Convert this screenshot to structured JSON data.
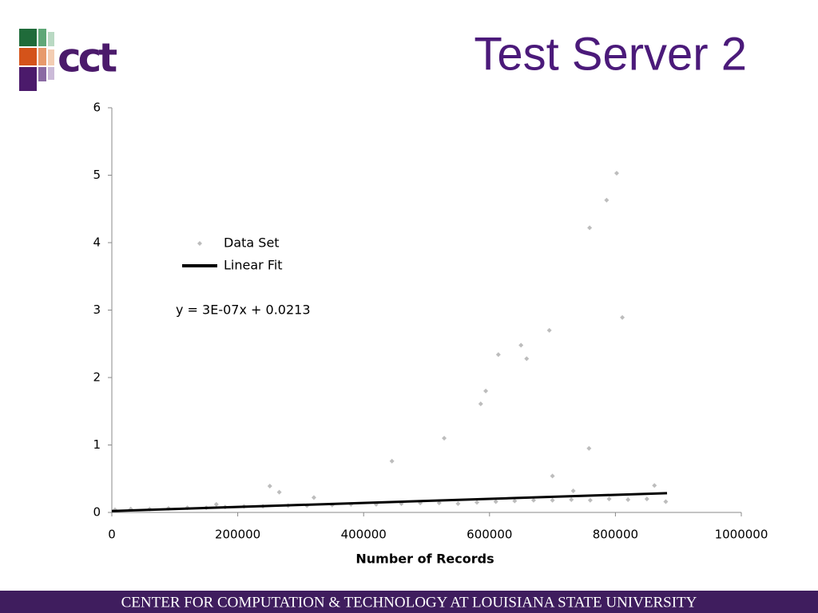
{
  "header": {
    "title": "Test Server 2",
    "logo_text": "cct"
  },
  "footer": {
    "text": "CENTER FOR COMPUTATION & TECHNOLOGY AT LOUISIANA STATE UNIVERSITY"
  },
  "chart_data": {
    "type": "scatter",
    "xlabel": "Number of Records",
    "annotation": "y = 3E-07x + 0.0213",
    "legend": "upper left",
    "xlim": [
      0,
      1000000
    ],
    "xticks": [
      0,
      200000,
      400000,
      600000,
      800000,
      1000000
    ],
    "ylim": [
      0,
      6
    ],
    "yticks": [
      0,
      1,
      2,
      3,
      4,
      5,
      6
    ],
    "series": [
      {
        "name": "Data Set",
        "color": "#bdbdbd",
        "x": [
          5000,
          30000,
          60000,
          90000,
          120000,
          150000,
          180000,
          210000,
          240000,
          280000,
          310000,
          350000,
          380000,
          420000,
          460000,
          490000,
          520000,
          550000,
          580000,
          610000,
          640000,
          670000,
          700000,
          730000,
          760000,
          790000,
          820000,
          850000,
          880000,
          166000,
          251000,
          266000,
          321000,
          445000,
          528000,
          586000,
          594000,
          614000,
          650000,
          659000,
          695000,
          700000,
          733000,
          758000,
          759000,
          786000,
          802000,
          811000,
          862000
        ],
        "values": [
          0.04,
          0.05,
          0.05,
          0.06,
          0.07,
          0.07,
          0.08,
          0.09,
          0.09,
          0.1,
          0.1,
          0.11,
          0.12,
          0.12,
          0.13,
          0.14,
          0.14,
          0.13,
          0.15,
          0.16,
          0.17,
          0.18,
          0.18,
          0.19,
          0.18,
          0.2,
          0.19,
          0.2,
          0.16,
          0.12,
          0.39,
          0.3,
          0.22,
          0.76,
          1.1,
          1.61,
          1.8,
          2.34,
          2.48,
          2.28,
          2.7,
          0.54,
          0.32,
          0.95,
          4.22,
          4.63,
          5.03,
          2.89,
          0.4
        ]
      },
      {
        "name": "Linear Fit",
        "type": "line",
        "color": "#000000",
        "x": [
          0,
          882000
        ],
        "values": [
          0.0213,
          0.2859
        ]
      }
    ]
  }
}
